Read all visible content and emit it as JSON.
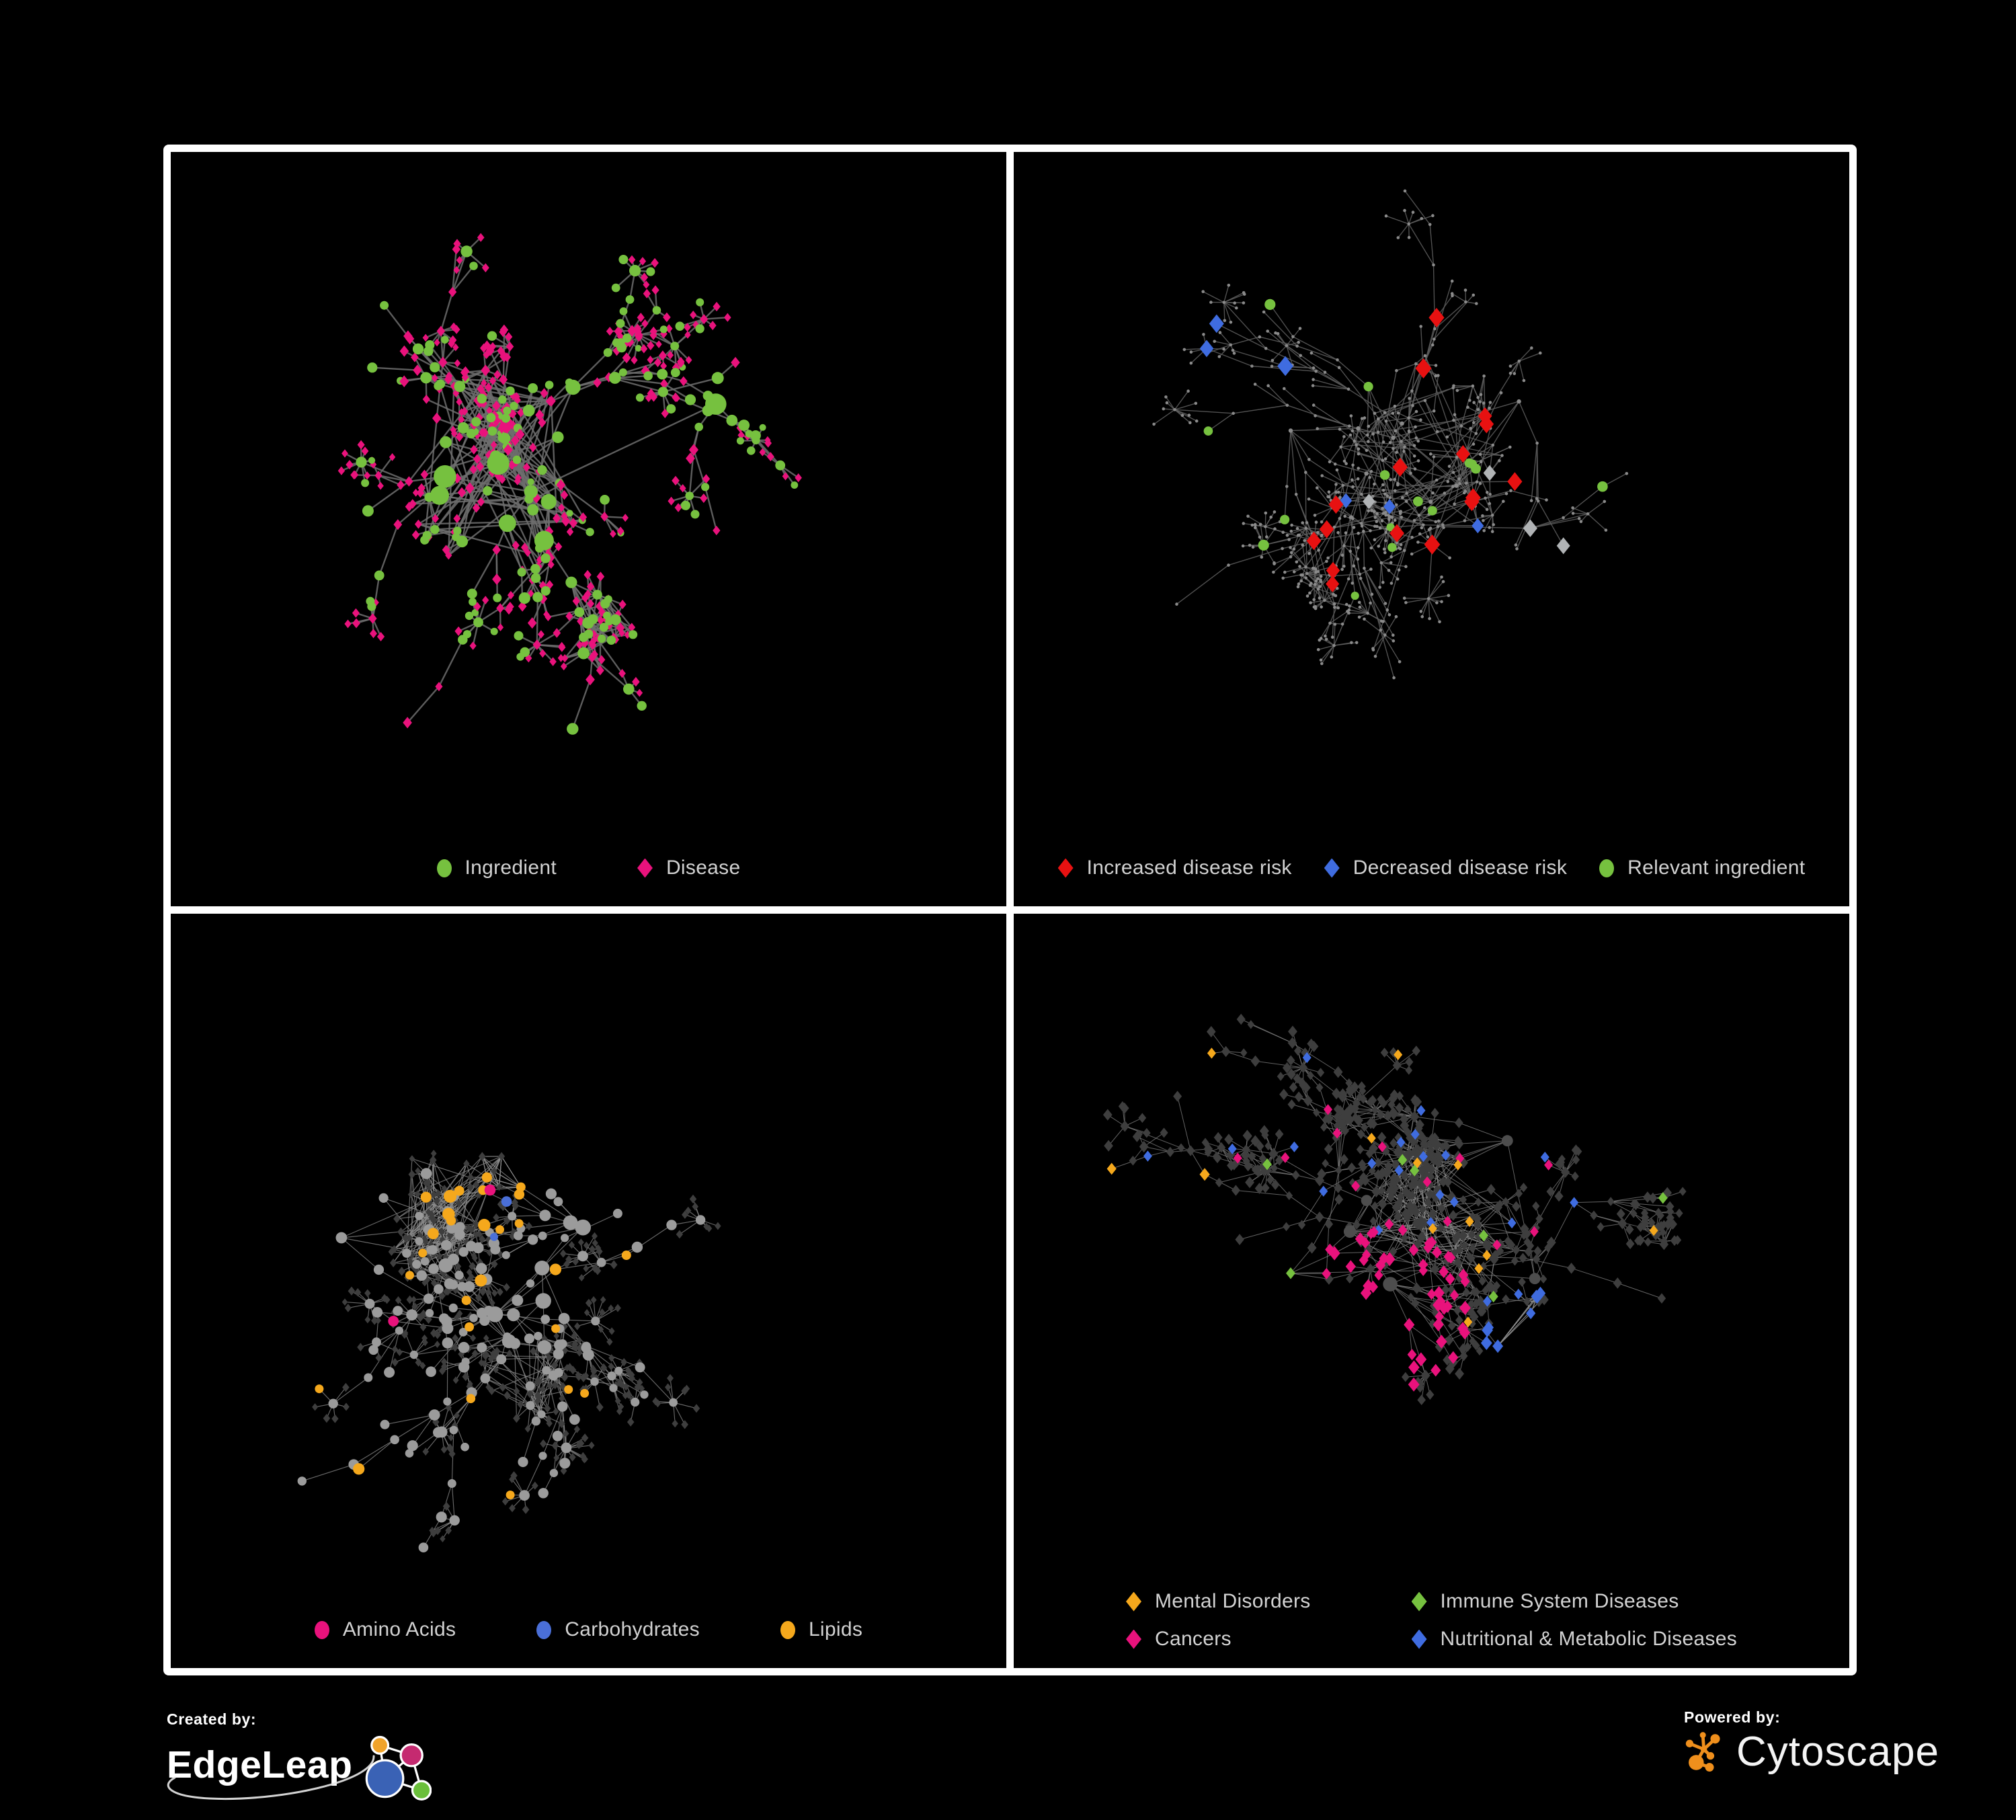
{
  "panels": [
    {
      "name": "ingredient-disease",
      "legend": [
        {
          "label": "Ingredient",
          "shape": "circle",
          "color": "#76c13f"
        },
        {
          "label": "Disease",
          "shape": "diamond",
          "color": "#e9127c"
        }
      ]
    },
    {
      "name": "disease-risk",
      "legend": [
        {
          "label": "Increased disease risk",
          "shape": "diamond",
          "color": "#e81111"
        },
        {
          "label": "Decreased disease risk",
          "shape": "diamond",
          "color": "#3f6ce0"
        },
        {
          "label": "Relevant ingredient",
          "shape": "circle",
          "color": "#76c13f"
        }
      ]
    },
    {
      "name": "macronutrients",
      "legend": [
        {
          "label": "Amino Acids",
          "shape": "circle",
          "color": "#e9127c"
        },
        {
          "label": "Carbohydrates",
          "shape": "circle",
          "color": "#4a6fd8"
        },
        {
          "label": "Lipids",
          "shape": "circle",
          "color": "#f5a81c"
        }
      ]
    },
    {
      "name": "disease-categories",
      "legend": [
        {
          "label": "Mental Disorders",
          "shape": "diamond",
          "color": "#f5a81c"
        },
        {
          "label": "Immune System Diseases",
          "shape": "diamond",
          "color": "#76c13f"
        },
        {
          "label": "Cancers",
          "shape": "diamond",
          "color": "#e9127c"
        },
        {
          "label": "Nutritional & Metabolic Diseases",
          "shape": "diamond",
          "color": "#3f6ce0"
        }
      ]
    }
  ],
  "footer": {
    "created_by": {
      "label": "Created by:",
      "brand": "EdgeLeap"
    },
    "powered_by": {
      "label": "Powered by:",
      "brand": "Cytoscape"
    }
  },
  "colors": {
    "background": "#000000",
    "frame": "#ffffff",
    "legend_text": "#d2d2d2",
    "edge_grey": "#6d6d6d",
    "edge_dim": "#5e5e5e",
    "edge_light": "#8b8b8b",
    "node_grey": "#9b9b9b",
    "node_dim": "#8a8a8a",
    "node_dark": "#3e3e3e",
    "node_dark_hub": "#4d4d4d",
    "silver": "#b0b3b5",
    "cytoscape_orange": "#ef8f1c",
    "edgeleap_orange": "#f0a32a",
    "edgeleap_magenta": "#c52a70",
    "edgeleap_blue": "#3a62b5",
    "edgeleap_green": "#6abf3a"
  }
}
